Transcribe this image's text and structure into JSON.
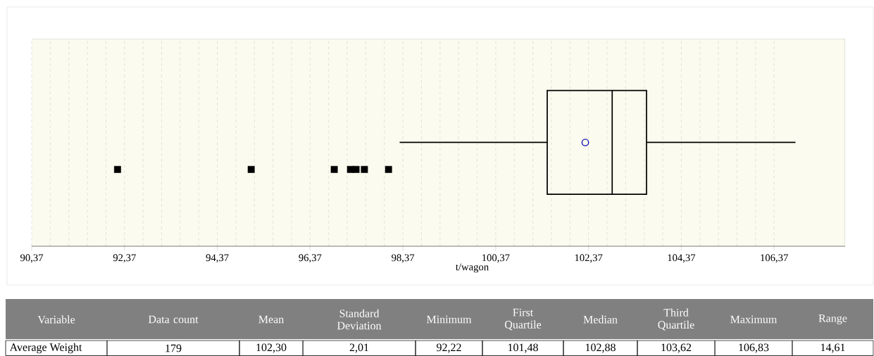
{
  "chart_data": [
    {
      "type": "box",
      "orientation": "horizontal",
      "categories": [
        null
      ],
      "boxes": [
        {
          "low": 98.3,
          "q1": 101.48,
          "median": 102.88,
          "q3": 103.62,
          "high": 106.83,
          "mean": 102.3,
          "outliers": [
            92.22,
            95.1,
            96.89,
            97.24,
            97.36,
            97.54,
            98.06
          ]
        }
      ],
      "xlim": [
        90.37,
        107.9
      ],
      "xticks": [
        {
          "value": 90.37,
          "label": "90,37"
        },
        {
          "value": 92.37,
          "label": "92,37"
        },
        {
          "value": 94.37,
          "label": "94,37"
        },
        {
          "value": 96.37,
          "label": "96,37"
        },
        {
          "value": 98.37,
          "label": "98,37"
        },
        {
          "value": 100.37,
          "label": "100,37"
        },
        {
          "value": 102.37,
          "label": "102,37"
        },
        {
          "value": 104.37,
          "label": "104,37"
        },
        {
          "value": 106.37,
          "label": "106,37"
        }
      ],
      "xlabel": "t/wagon",
      "grid": "x",
      "marker": "square"
    },
    {
      "type": "other",
      "categories": [
        "Variable",
        "Data count",
        "Mean",
        "Standard Deviation",
        "Minimum",
        "First Quartile",
        "Median",
        "Third Quartile",
        "Maximum",
        "Range"
      ],
      "annotations": [
        "Average Weight",
        "179",
        "102,30",
        "2,01",
        "92,22",
        "101,48",
        "102,88",
        "103,62",
        "106,83",
        "14,61"
      ]
    }
  ]
}
